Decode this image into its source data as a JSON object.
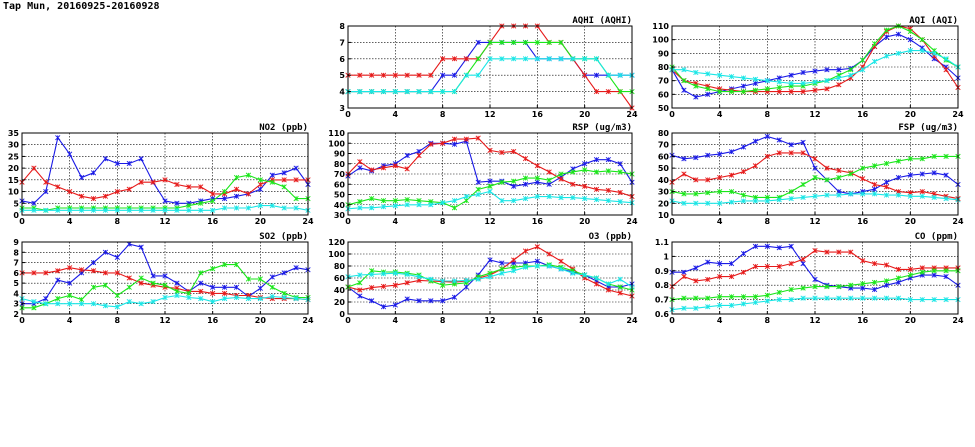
{
  "page_title": "Tap Mun, 20160925-20160928",
  "series_colors": [
    "#1a1ae6",
    "#e61a1a",
    "#1ae61a",
    "#1ae6e6"
  ],
  "chart_data": [
    {
      "type": "line",
      "title": "AQHI (AQHI)",
      "ylim": [
        3,
        8
      ],
      "yticks": [
        3,
        4,
        5,
        6,
        7,
        8
      ],
      "xlim": [
        0,
        24
      ],
      "xticks": [
        0,
        4,
        8,
        12,
        16,
        20,
        24
      ],
      "grid": true,
      "series": [
        {
          "color": "#1a1ae6",
          "values": [
            4,
            4,
            4,
            4,
            4,
            4,
            4,
            4,
            5,
            5,
            6,
            7,
            7,
            7,
            7,
            7,
            6,
            6,
            6,
            6,
            5,
            5,
            5,
            5,
            5
          ]
        },
        {
          "color": "#e61a1a",
          "values": [
            5,
            5,
            5,
            5,
            5,
            5,
            5,
            5,
            6,
            6,
            6,
            6,
            7,
            8,
            8,
            8,
            8,
            7,
            7,
            6,
            5,
            4,
            4,
            4,
            3
          ]
        },
        {
          "color": "#1ae61a",
          "values": [
            4,
            4,
            4,
            4,
            4,
            4,
            4,
            4,
            4,
            4,
            5,
            6,
            7,
            7,
            7,
            7,
            7,
            7,
            7,
            6,
            6,
            6,
            5,
            4,
            4
          ]
        },
        {
          "color": "#1ae6e6",
          "values": [
            4,
            4,
            4,
            4,
            4,
            4,
            4,
            4,
            4,
            4,
            5,
            5,
            6,
            6,
            6,
            6,
            6,
            6,
            6,
            6,
            6,
            6,
            5,
            5,
            5
          ]
        }
      ]
    },
    {
      "type": "line",
      "title": "AQI (AQI)",
      "ylim": [
        50,
        110
      ],
      "yticks": [
        50,
        60,
        70,
        80,
        90,
        100,
        110
      ],
      "xlim": [
        0,
        24
      ],
      "xticks": [
        0,
        4,
        8,
        12,
        16,
        20,
        24
      ],
      "grid": true,
      "series": [
        {
          "color": "#1a1ae6",
          "values": [
            78,
            63,
            58,
            60,
            62,
            64,
            66,
            68,
            70,
            72,
            74,
            76,
            77,
            78,
            78,
            79,
            85,
            95,
            102,
            104,
            100,
            94,
            86,
            80,
            72
          ]
        },
        {
          "color": "#e61a1a",
          "values": [
            78,
            70,
            68,
            66,
            64,
            63,
            62,
            62,
            62,
            62,
            62,
            62,
            63,
            64,
            67,
            72,
            80,
            95,
            106,
            110,
            108,
            100,
            88,
            78,
            65
          ]
        },
        {
          "color": "#1ae61a",
          "values": [
            80,
            70,
            66,
            64,
            62,
            62,
            62,
            63,
            64,
            65,
            66,
            66,
            68,
            70,
            74,
            78,
            85,
            97,
            107,
            110,
            106,
            100,
            92,
            85,
            80
          ]
        },
        {
          "color": "#1ae6e6",
          "values": [
            78,
            78,
            76,
            75,
            74,
            73,
            72,
            71,
            70,
            69,
            68,
            68,
            69,
            70,
            72,
            74,
            78,
            84,
            88,
            90,
            92,
            92,
            90,
            86,
            80
          ]
        }
      ]
    },
    {
      "type": "line",
      "title": "NO2 (ppb)",
      "ylim": [
        0,
        35
      ],
      "yticks": [
        0,
        5,
        10,
        15,
        20,
        25,
        30,
        35
      ],
      "xlim": [
        0,
        24
      ],
      "xticks": [
        0,
        4,
        8,
        12,
        16,
        20,
        24
      ],
      "grid": true,
      "series": [
        {
          "color": "#1a1ae6",
          "values": [
            6,
            5,
            10,
            33,
            26,
            16,
            18,
            24,
            22,
            22,
            24,
            14,
            6,
            5,
            5,
            6,
            7,
            7,
            8,
            9,
            11,
            17,
            18,
            20,
            13
          ]
        },
        {
          "color": "#e61a1a",
          "values": [
            14,
            20,
            14,
            12,
            10,
            8,
            7,
            8,
            10,
            11,
            14,
            14,
            15,
            13,
            12,
            12,
            9,
            9,
            11,
            9,
            13,
            15,
            15,
            15,
            15
          ]
        },
        {
          "color": "#1ae61a",
          "values": [
            3,
            3,
            2,
            3,
            3,
            3,
            3,
            3,
            3,
            3,
            3,
            3,
            3,
            3,
            4,
            5,
            6,
            10,
            16,
            17,
            15,
            14,
            12,
            7,
            7
          ]
        },
        {
          "color": "#1ae6e6",
          "values": [
            2,
            2,
            2,
            2,
            2,
            2,
            2,
            2,
            2,
            2,
            2,
            2,
            2,
            2,
            2,
            2,
            2,
            3,
            3,
            3,
            4,
            4,
            3,
            3,
            2
          ]
        }
      ]
    },
    {
      "type": "line",
      "title": "RSP (ug/m3)",
      "ylim": [
        30,
        110
      ],
      "yticks": [
        30,
        40,
        50,
        60,
        70,
        80,
        90,
        100,
        110
      ],
      "xlim": [
        0,
        24
      ],
      "xticks": [
        0,
        4,
        8,
        12,
        16,
        20,
        24
      ],
      "grid": true,
      "series": [
        {
          "color": "#1a1ae6",
          "values": [
            68,
            76,
            73,
            78,
            80,
            88,
            92,
            100,
            100,
            99,
            102,
            62,
            63,
            63,
            58,
            60,
            62,
            60,
            67,
            75,
            80,
            84,
            84,
            80,
            62
          ]
        },
        {
          "color": "#e61a1a",
          "values": [
            70,
            82,
            74,
            76,
            78,
            75,
            88,
            99,
            100,
            104,
            104,
            105,
            93,
            91,
            92,
            85,
            78,
            72,
            65,
            60,
            58,
            55,
            54,
            52,
            48
          ]
        },
        {
          "color": "#1ae61a",
          "values": [
            40,
            43,
            46,
            44,
            44,
            45,
            44,
            43,
            42,
            37,
            44,
            55,
            58,
            62,
            63,
            66,
            66,
            64,
            70,
            72,
            74,
            72,
            73,
            72,
            70
          ]
        },
        {
          "color": "#1ae6e6",
          "values": [
            36,
            37,
            37,
            38,
            39,
            40,
            40,
            40,
            42,
            44,
            48,
            50,
            53,
            44,
            44,
            46,
            48,
            48,
            47,
            47,
            46,
            45,
            44,
            43,
            42
          ]
        }
      ]
    },
    {
      "type": "line",
      "title": "FSP (ug/m3)",
      "ylim": [
        10,
        80
      ],
      "yticks": [
        10,
        20,
        30,
        40,
        50,
        60,
        70,
        80
      ],
      "xlim": [
        0,
        24
      ],
      "xticks": [
        0,
        4,
        8,
        12,
        16,
        20,
        24
      ],
      "grid": true,
      "series": [
        {
          "color": "#1a1ae6",
          "values": [
            61,
            58,
            59,
            61,
            62,
            64,
            68,
            73,
            77,
            74,
            70,
            72,
            50,
            40,
            30,
            28,
            30,
            32,
            38,
            42,
            44,
            45,
            46,
            44,
            36
          ]
        },
        {
          "color": "#e61a1a",
          "values": [
            38,
            45,
            40,
            40,
            42,
            44,
            47,
            52,
            60,
            63,
            63,
            63,
            58,
            50,
            48,
            46,
            41,
            36,
            34,
            30,
            29,
            30,
            28,
            26,
            24
          ]
        },
        {
          "color": "#1ae61a",
          "values": [
            30,
            28,
            28,
            29,
            30,
            30,
            27,
            25,
            25,
            25,
            30,
            36,
            42,
            40,
            42,
            45,
            50,
            52,
            54,
            56,
            58,
            58,
            60,
            60,
            60
          ]
        },
        {
          "color": "#1ae6e6",
          "values": [
            22,
            20,
            20,
            20,
            20,
            21,
            22,
            22,
            22,
            23,
            24,
            25,
            26,
            27,
            27,
            28,
            28,
            28,
            27,
            27,
            26,
            26,
            25,
            24,
            23
          ]
        }
      ]
    },
    {
      "type": "line",
      "title": "SO2 (ppb)",
      "ylim": [
        2,
        9
      ],
      "yticks": [
        2,
        3,
        4,
        5,
        6,
        7,
        8,
        9
      ],
      "xlim": [
        0,
        24
      ],
      "xticks": [
        0,
        4,
        8,
        12,
        16,
        20,
        24
      ],
      "grid": true,
      "series": [
        {
          "color": "#1a1ae6",
          "values": [
            3.0,
            3.0,
            3.5,
            5.3,
            5.0,
            6.0,
            7.0,
            8.0,
            7.5,
            8.8,
            8.5,
            5.7,
            5.7,
            5.0,
            4.2,
            5.0,
            4.6,
            4.6,
            4.6,
            3.7,
            4.5,
            5.6,
            6.0,
            6.5,
            6.3
          ]
        },
        {
          "color": "#e61a1a",
          "values": [
            6.0,
            6.0,
            6.0,
            6.2,
            6.5,
            6.3,
            6.2,
            6.0,
            6.0,
            5.5,
            5.0,
            4.8,
            4.6,
            4.5,
            4.2,
            4.2,
            4.0,
            4.0,
            3.8,
            3.8,
            3.6,
            3.5,
            3.5,
            3.5,
            3.4
          ]
        },
        {
          "color": "#1ae61a",
          "values": [
            2.6,
            2.6,
            3.0,
            3.5,
            3.8,
            3.4,
            4.6,
            4.8,
            3.8,
            4.6,
            5.5,
            5.0,
            4.8,
            4.2,
            4.0,
            6.0,
            6.4,
            6.8,
            6.8,
            5.4,
            5.4,
            4.6,
            4.0,
            3.6,
            3.6
          ]
        },
        {
          "color": "#1ae6e6",
          "values": [
            3.5,
            3.2,
            3.0,
            3.0,
            3.0,
            3.0,
            3.0,
            2.8,
            2.7,
            3.2,
            3.0,
            3.2,
            3.6,
            3.8,
            3.6,
            3.5,
            3.2,
            3.5,
            3.6,
            3.5,
            3.5,
            3.7,
            3.6,
            3.5,
            3.4
          ]
        }
      ]
    },
    {
      "type": "line",
      "title": "O3 (ppb)",
      "ylim": [
        0,
        120
      ],
      "yticks": [
        0,
        20,
        40,
        60,
        80,
        100,
        120
      ],
      "xlim": [
        0,
        24
      ],
      "xticks": [
        0,
        4,
        8,
        12,
        16,
        20,
        24
      ],
      "grid": true,
      "series": [
        {
          "color": "#1a1ae6",
          "values": [
            45,
            30,
            22,
            12,
            15,
            25,
            22,
            22,
            22,
            28,
            45,
            65,
            90,
            85,
            85,
            85,
            88,
            80,
            75,
            70,
            65,
            55,
            45,
            45,
            50
          ]
        },
        {
          "color": "#e61a1a",
          "values": [
            45,
            40,
            44,
            46,
            48,
            52,
            56,
            55,
            54,
            53,
            55,
            60,
            65,
            75,
            90,
            105,
            112,
            100,
            88,
            75,
            60,
            50,
            40,
            35,
            30
          ]
        },
        {
          "color": "#1ae61a",
          "values": [
            45,
            52,
            72,
            70,
            70,
            68,
            65,
            55,
            48,
            50,
            52,
            62,
            68,
            75,
            78,
            80,
            80,
            82,
            78,
            72,
            65,
            60,
            50,
            45,
            40
          ]
        },
        {
          "color": "#1ae6e6",
          "values": [
            62,
            65,
            66,
            67,
            68,
            66,
            62,
            58,
            55,
            55,
            56,
            58,
            62,
            68,
            72,
            78,
            80,
            80,
            75,
            68,
            65,
            60,
            50,
            58,
            45
          ]
        }
      ]
    },
    {
      "type": "line",
      "title": "CO (ppm)",
      "ylim": [
        0.6,
        1.1
      ],
      "yticks": [
        0.6,
        0.7,
        0.8,
        0.9,
        1.0,
        1.1
      ],
      "xlim": [
        0,
        24
      ],
      "xticks": [
        0,
        4,
        8,
        12,
        16,
        20,
        24
      ],
      "grid": true,
      "series": [
        {
          "color": "#1a1ae6",
          "values": [
            0.89,
            0.89,
            0.92,
            0.96,
            0.95,
            0.95,
            1.02,
            1.07,
            1.07,
            1.06,
            1.07,
            0.95,
            0.84,
            0.8,
            0.79,
            0.78,
            0.78,
            0.77,
            0.8,
            0.82,
            0.85,
            0.87,
            0.87,
            0.86,
            0.8
          ]
        },
        {
          "color": "#e61a1a",
          "values": [
            0.79,
            0.86,
            0.83,
            0.84,
            0.86,
            0.86,
            0.89,
            0.93,
            0.93,
            0.93,
            0.95,
            0.98,
            1.04,
            1.03,
            1.03,
            1.03,
            0.97,
            0.95,
            0.94,
            0.91,
            0.91,
            0.92,
            0.92,
            0.92,
            0.92
          ]
        },
        {
          "color": "#1ae61a",
          "values": [
            0.7,
            0.71,
            0.71,
            0.71,
            0.72,
            0.72,
            0.72,
            0.72,
            0.73,
            0.75,
            0.77,
            0.78,
            0.79,
            0.79,
            0.79,
            0.8,
            0.81,
            0.82,
            0.83,
            0.85,
            0.87,
            0.89,
            0.9,
            0.9,
            0.9
          ]
        },
        {
          "color": "#1ae6e6",
          "values": [
            0.63,
            0.64,
            0.64,
            0.65,
            0.66,
            0.66,
            0.67,
            0.68,
            0.69,
            0.7,
            0.7,
            0.71,
            0.71,
            0.71,
            0.71,
            0.71,
            0.71,
            0.71,
            0.71,
            0.71,
            0.7,
            0.7,
            0.7,
            0.7,
            0.7
          ]
        }
      ]
    }
  ]
}
